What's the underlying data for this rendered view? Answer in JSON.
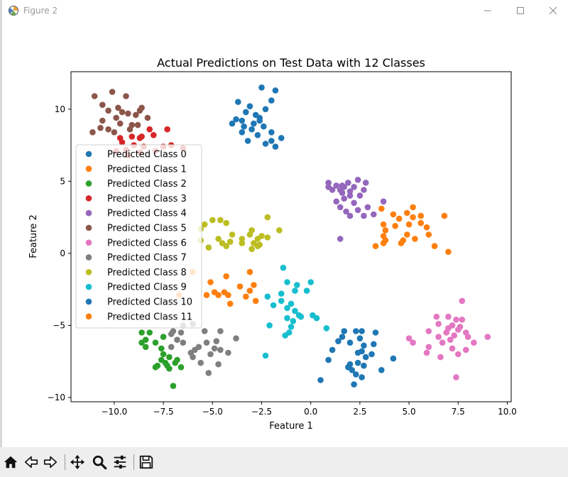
{
  "window": {
    "title": "Figure 2",
    "icons": {
      "app": "matplotlib-figure-icon",
      "minimize": "minimize-icon",
      "maximize": "maximize-icon",
      "close": "close-icon"
    }
  },
  "toolbar": {
    "tools": [
      "home-icon",
      "back-arrow-icon",
      "forward-arrow-icon",
      "pan-move-icon",
      "zoom-magnifier-icon",
      "configure-subplots-icon",
      "save-floppy-icon"
    ]
  },
  "chart_data": {
    "type": "scatter",
    "title": "Actual Predictions on Test Data with 12 Classes",
    "xlabel": "Feature 1",
    "ylabel": "Feature 2",
    "xlim": [
      -12.2,
      10.2
    ],
    "ylim": [
      -10.3,
      12.6
    ],
    "xticks": [
      -10.0,
      -7.5,
      -5.0,
      -2.5,
      0.0,
      2.5,
      5.0,
      7.5,
      10.0
    ],
    "xtick_labels": [
      "−10.0",
      "−7.5",
      "−5.0",
      "−2.5",
      "0.0",
      "2.5",
      "5.0",
      "7.5",
      "10.0"
    ],
    "yticks": [
      -10,
      -5,
      0,
      5,
      10
    ],
    "ytick_labels": [
      "−10",
      "−5",
      "0",
      "5",
      "10"
    ],
    "grid": false,
    "legend_position": "center-left",
    "series": [
      {
        "name": "Predicted Class 0",
        "color": "#1f77b4",
        "points": [
          [
            -3.7,
            10.5
          ],
          [
            -2.5,
            11.5
          ],
          [
            -1.8,
            11.3
          ],
          [
            -2.0,
            10.6
          ],
          [
            -3.1,
            10.2
          ],
          [
            -2.3,
            10.0
          ],
          [
            -3.3,
            9.8
          ],
          [
            -2.6,
            9.4
          ],
          [
            -3.5,
            9.2
          ],
          [
            -2.9,
            9.0
          ],
          [
            -4.0,
            9.0
          ],
          [
            -2.4,
            8.8
          ],
          [
            -3.0,
            8.6
          ],
          [
            -2.0,
            8.4
          ],
          [
            -3.5,
            8.4
          ],
          [
            -2.7,
            8.2
          ],
          [
            -1.5,
            8.0
          ],
          [
            -3.2,
            7.8
          ],
          [
            -2.0,
            7.8
          ],
          [
            -1.8,
            7.4
          ],
          [
            -2.3,
            7.6
          ],
          [
            -3.8,
            9.3
          ],
          [
            -2.8,
            9.6
          ],
          [
            -2.6,
            9.2
          ],
          [
            -3.4,
            8.8
          ]
        ]
      },
      {
        "name": "Predicted Class 1",
        "color": "#ff7f0e",
        "points": [
          [
            3.6,
            3.1
          ],
          [
            4.2,
            2.7
          ],
          [
            4.9,
            2.8
          ],
          [
            5.2,
            2.5
          ],
          [
            5.6,
            2.6
          ],
          [
            6.8,
            2.6
          ],
          [
            5.6,
            2.1
          ],
          [
            5.0,
            2.0
          ],
          [
            4.3,
            1.9
          ],
          [
            3.7,
            2.0
          ],
          [
            3.8,
            1.6
          ],
          [
            5.9,
            1.8
          ],
          [
            3.7,
            1.2
          ],
          [
            4.9,
            1.3
          ],
          [
            3.8,
            0.9
          ],
          [
            5.3,
            1.0
          ],
          [
            4.7,
            0.9
          ],
          [
            6.0,
            1.3
          ],
          [
            4.6,
            0.7
          ],
          [
            3.3,
            0.5
          ],
          [
            3.7,
            0.7
          ],
          [
            6.3,
            0.5
          ],
          [
            7.0,
            0.1
          ],
          [
            5.2,
            3.2
          ],
          [
            4.5,
            2.4
          ]
        ]
      },
      {
        "name": "Predicted Class 2",
        "color": "#2ca02c",
        "points": [
          [
            -8.6,
            -5.5
          ],
          [
            -8.2,
            -5.5
          ],
          [
            -7.5,
            -5.8
          ],
          [
            -8.4,
            -6.0
          ],
          [
            -7.9,
            -6.2
          ],
          [
            -8.4,
            -6.5
          ],
          [
            -7.6,
            -6.6
          ],
          [
            -7.2,
            -7.2
          ],
          [
            -7.6,
            -7.4
          ],
          [
            -7.8,
            -7.8
          ],
          [
            -7.3,
            -7.8
          ],
          [
            -6.9,
            -7.6
          ],
          [
            -6.6,
            -7.9
          ],
          [
            -7.2,
            -8.0
          ],
          [
            -7.0,
            -9.2
          ],
          [
            -7.5,
            -7.0
          ],
          [
            -6.8,
            -7.4
          ],
          [
            -7.4,
            -7.6
          ],
          [
            -8.6,
            -6.2
          ],
          [
            -7.9,
            -7.9
          ]
        ]
      },
      {
        "name": "Predicted Class 3",
        "color": "#d62728",
        "points": [
          [
            -9.7,
            8.0
          ],
          [
            -9.1,
            8.1
          ],
          [
            -8.2,
            8.6
          ],
          [
            -7.3,
            8.6
          ],
          [
            -8.7,
            8.0
          ],
          [
            -8.0,
            8.2
          ],
          [
            -9.6,
            7.7
          ],
          [
            -9.0,
            7.5
          ],
          [
            -8.5,
            7.4
          ],
          [
            -7.5,
            7.4
          ],
          [
            -9.4,
            7.2
          ],
          [
            -8.7,
            7.0
          ],
          [
            -9.9,
            7.1
          ],
          [
            -6.5,
            7.3
          ],
          [
            -7.1,
            7.5
          ],
          [
            -9.3,
            6.8
          ],
          [
            -7.9,
            7.1
          ],
          [
            -8.6,
            8.1
          ]
        ]
      },
      {
        "name": "Predicted Class 4",
        "color": "#9467bd",
        "points": [
          [
            1.9,
            4.9
          ],
          [
            2.4,
            5.1
          ],
          [
            2.8,
            4.9
          ],
          [
            0.9,
            4.9
          ],
          [
            1.3,
            4.7
          ],
          [
            1.6,
            4.7
          ],
          [
            2.2,
            4.6
          ],
          [
            0.9,
            4.6
          ],
          [
            1.5,
            4.4
          ],
          [
            2.7,
            4.4
          ],
          [
            1.6,
            4.2
          ],
          [
            2.0,
            4.0
          ],
          [
            2.5,
            4.0
          ],
          [
            1.7,
            3.8
          ],
          [
            2.2,
            3.5
          ],
          [
            1.3,
            3.6
          ],
          [
            3.7,
            3.6
          ],
          [
            1.5,
            3.2
          ],
          [
            2.9,
            3.2
          ],
          [
            2.4,
            3.0
          ],
          [
            1.8,
            2.9
          ],
          [
            3.2,
            2.7
          ],
          [
            2.0,
            2.6
          ],
          [
            2.7,
            2.6
          ],
          [
            1.5,
            1.0
          ],
          [
            1.1,
            4.4
          ],
          [
            2.0,
            4.3
          ],
          [
            1.7,
            4.6
          ]
        ]
      },
      {
        "name": "Predicted Class 5",
        "color": "#8c564b",
        "points": [
          [
            -11.0,
            10.9
          ],
          [
            -10.1,
            11.2
          ],
          [
            -9.4,
            10.9
          ],
          [
            -10.6,
            10.3
          ],
          [
            -9.8,
            10.1
          ],
          [
            -8.6,
            10.1
          ],
          [
            -10.3,
            9.9
          ],
          [
            -9.6,
            9.8
          ],
          [
            -9.3,
            9.7
          ],
          [
            -8.9,
            9.6
          ],
          [
            -9.9,
            9.4
          ],
          [
            -8.3,
            9.4
          ],
          [
            -10.6,
            9.2
          ],
          [
            -9.7,
            9.0
          ],
          [
            -9.1,
            8.9
          ],
          [
            -8.8,
            8.9
          ],
          [
            -10.7,
            8.7
          ],
          [
            -10.3,
            8.6
          ],
          [
            -9.2,
            8.6
          ],
          [
            -11.1,
            8.4
          ],
          [
            -10.0,
            8.4
          ],
          [
            -8.7,
            9.9
          ]
        ]
      },
      {
        "name": "Predicted Class 6",
        "color": "#e377c2",
        "points": [
          [
            7.7,
            -3.3
          ],
          [
            6.4,
            -4.4
          ],
          [
            7.0,
            -4.4
          ],
          [
            7.4,
            -4.6
          ],
          [
            7.7,
            -4.6
          ],
          [
            6.5,
            -4.9
          ],
          [
            7.2,
            -5.0
          ],
          [
            6.0,
            -5.4
          ],
          [
            7.0,
            -5.2
          ],
          [
            7.5,
            -5.3
          ],
          [
            7.9,
            -5.5
          ],
          [
            7.3,
            -5.7
          ],
          [
            8.0,
            -5.8
          ],
          [
            9.0,
            -5.8
          ],
          [
            5.0,
            -5.9
          ],
          [
            6.5,
            -5.8
          ],
          [
            7.1,
            -6.0
          ],
          [
            5.2,
            -6.2
          ],
          [
            6.7,
            -6.2
          ],
          [
            8.3,
            -6.2
          ],
          [
            6.0,
            -6.5
          ],
          [
            7.2,
            -6.6
          ],
          [
            7.9,
            -6.7
          ],
          [
            5.9,
            -6.9
          ],
          [
            7.5,
            -7.0
          ],
          [
            6.6,
            -7.2
          ],
          [
            7.4,
            -8.6
          ],
          [
            7.6,
            -5.1
          ],
          [
            6.9,
            -5.5
          ]
        ]
      },
      {
        "name": "Predicted Class 7",
        "color": "#7f7f7f",
        "points": [
          [
            -6.0,
            -4.9
          ],
          [
            -6.5,
            -5.0
          ],
          [
            -7.0,
            -5.4
          ],
          [
            -6.6,
            -5.5
          ],
          [
            -5.4,
            -5.4
          ],
          [
            -4.6,
            -5.4
          ],
          [
            -7.1,
            -5.6
          ],
          [
            -3.8,
            -5.9
          ],
          [
            -6.8,
            -6.0
          ],
          [
            -6.5,
            -6.2
          ],
          [
            -5.3,
            -6.2
          ],
          [
            -4.8,
            -6.1
          ],
          [
            -5.7,
            -6.5
          ],
          [
            -7.1,
            -6.5
          ],
          [
            -4.9,
            -6.6
          ],
          [
            -4.6,
            -6.7
          ],
          [
            -5.9,
            -6.7
          ],
          [
            -6.1,
            -6.9
          ],
          [
            -4.2,
            -6.9
          ],
          [
            -5.1,
            -7.0
          ],
          [
            -6.0,
            -7.2
          ],
          [
            -5.6,
            -7.6
          ],
          [
            -4.7,
            -7.7
          ],
          [
            -5.2,
            -8.3
          ]
        ]
      },
      {
        "name": "Predicted Class 8",
        "color": "#bcbd22",
        "points": [
          [
            -5.0,
            2.3
          ],
          [
            -4.6,
            2.3
          ],
          [
            -4.3,
            2.1
          ],
          [
            -5.4,
            2.0
          ],
          [
            -5.6,
            1.7
          ],
          [
            -2.2,
            2.5
          ],
          [
            -3.0,
            1.6
          ],
          [
            -4.0,
            1.3
          ],
          [
            -1.6,
            1.6
          ],
          [
            -3.1,
            1.3
          ],
          [
            -2.5,
            1.2
          ],
          [
            -2.2,
            1.1
          ],
          [
            -3.5,
            1.0
          ],
          [
            -4.7,
            1.0
          ],
          [
            -2.7,
            1.0
          ],
          [
            -4.1,
            0.8
          ],
          [
            -4.5,
            0.7
          ],
          [
            -2.9,
            0.7
          ],
          [
            -3.5,
            0.7
          ],
          [
            -4.3,
            0.5
          ],
          [
            -2.7,
            0.5
          ],
          [
            -5.2,
            0.4
          ],
          [
            -3.0,
            0.3
          ],
          [
            -2.6,
            0.6
          ],
          [
            -5.6,
            0.9
          ]
        ]
      },
      {
        "name": "Predicted Class 9",
        "color": "#17becf",
        "points": [
          [
            -1.4,
            -1.0
          ],
          [
            -1.2,
            -2.0
          ],
          [
            -0.7,
            -2.2
          ],
          [
            -0.2,
            -2.6
          ],
          [
            -0.8,
            -2.6
          ],
          [
            -1.5,
            -2.8
          ],
          [
            -2.2,
            -3.0
          ],
          [
            -1.5,
            -3.3
          ],
          [
            -1.0,
            -3.5
          ],
          [
            -1.9,
            -3.6
          ],
          [
            -1.2,
            -3.8
          ],
          [
            -0.8,
            -4.0
          ],
          [
            -0.6,
            -4.3
          ],
          [
            -0.5,
            -4.4
          ],
          [
            0.1,
            -4.3
          ],
          [
            -1.2,
            -4.5
          ],
          [
            -0.9,
            -4.7
          ],
          [
            -2.1,
            -5.0
          ],
          [
            -1.0,
            -5.1
          ],
          [
            0.3,
            -4.5
          ],
          [
            0.8,
            -5.2
          ],
          [
            -1.1,
            -5.5
          ],
          [
            -1.3,
            -5.7
          ],
          [
            -2.3,
            -7.1
          ],
          [
            0.0,
            -2.0
          ]
        ]
      },
      {
        "name": "Predicted Class 10",
        "color": "#1f77b4",
        "points": [
          [
            1.7,
            -5.4
          ],
          [
            2.3,
            -5.4
          ],
          [
            2.6,
            -5.4
          ],
          [
            3.3,
            -5.5
          ],
          [
            1.4,
            -6.1
          ],
          [
            2.0,
            -6.2
          ],
          [
            2.7,
            -6.4
          ],
          [
            3.2,
            -6.3
          ],
          [
            1.1,
            -6.7
          ],
          [
            2.6,
            -6.8
          ],
          [
            2.4,
            -6.9
          ],
          [
            3.1,
            -7.0
          ],
          [
            2.8,
            -7.2
          ],
          [
            0.9,
            -7.4
          ],
          [
            4.2,
            -7.3
          ],
          [
            2.0,
            -7.7
          ],
          [
            2.4,
            -7.6
          ],
          [
            1.9,
            -7.9
          ],
          [
            2.7,
            -7.8
          ],
          [
            2.1,
            -8.1
          ],
          [
            3.6,
            -8.1
          ],
          [
            2.3,
            -8.4
          ],
          [
            0.5,
            -8.8
          ],
          [
            2.6,
            -8.6
          ],
          [
            2.2,
            -9.1
          ],
          [
            2.5,
            -5.9
          ],
          [
            1.6,
            -5.8
          ]
        ]
      },
      {
        "name": "Predicted Class 11",
        "color": "#ff7f0e",
        "points": [
          [
            -6.0,
            -1.3
          ],
          [
            -3.1,
            -1.3
          ],
          [
            -4.3,
            -1.6
          ],
          [
            -5.1,
            -2.0
          ],
          [
            -2.9,
            -2.2
          ],
          [
            -3.6,
            -2.3
          ],
          [
            -4.9,
            -2.7
          ],
          [
            -4.4,
            -2.7
          ],
          [
            -3.1,
            -2.6
          ],
          [
            -4.7,
            -2.9
          ],
          [
            -5.3,
            -2.9
          ],
          [
            -4.2,
            -2.9
          ],
          [
            -3.3,
            -3.0
          ],
          [
            -2.8,
            -3.3
          ],
          [
            -4.1,
            -3.5
          ],
          [
            -6.7,
            -2.9
          ]
        ]
      }
    ]
  }
}
